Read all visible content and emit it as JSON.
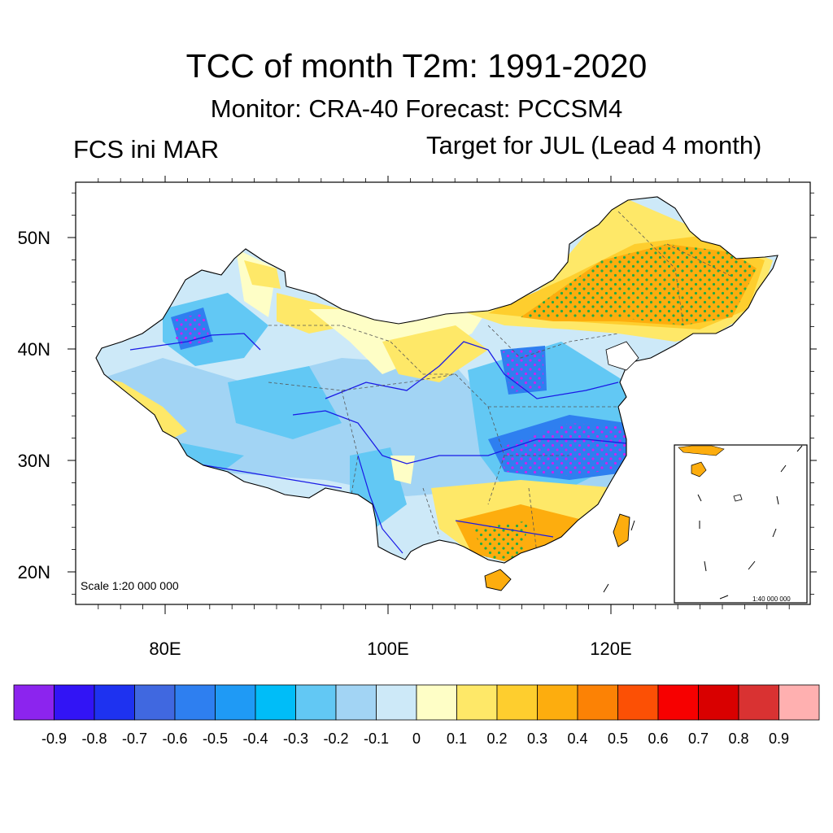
{
  "figure": {
    "title": "TCC of month T2m: 1991-2020",
    "subtitle": "Monitor: CRA-40   Forecast: PCCSM4",
    "left_label": "FCS ini MAR",
    "right_label": "Target for JUL (Lead 4 month)",
    "scale_main": "Scale 1:20 000 000",
    "scale_inset": "1:40 000 000"
  },
  "axes": {
    "lat_ticks": [
      {
        "label": "50N",
        "value": 50
      },
      {
        "label": "40N",
        "value": 40
      },
      {
        "label": "30N",
        "value": 30
      },
      {
        "label": "20N",
        "value": 20
      }
    ],
    "lon_ticks": [
      {
        "label": "80E",
        "value": 80
      },
      {
        "label": "100E",
        "value": 100
      },
      {
        "label": "120E",
        "value": 120
      }
    ],
    "lon_range": [
      72,
      138
    ],
    "lat_range": [
      17,
      55
    ]
  },
  "colorbar": {
    "labels": [
      "-0.9",
      "-0.8",
      "-0.7",
      "-0.6",
      "-0.5",
      "-0.4",
      "-0.3",
      "-0.2",
      "-0.1",
      "0",
      "0.1",
      "0.2",
      "0.3",
      "0.4",
      "0.5",
      "0.6",
      "0.7",
      "0.8",
      "0.9"
    ],
    "colors": [
      "#8c24ee",
      "#3214f5",
      "#1e32f0",
      "#4068e0",
      "#2e7ff0",
      "#1f9af5",
      "#00bdf8",
      "#62c8f4",
      "#a2d4f4",
      "#cde9f8",
      "#fefec6",
      "#fee868",
      "#fece2e",
      "#fdad0e",
      "#fc8205",
      "#fc5005",
      "#f70000",
      "#d90000",
      "#d93232",
      "#ffb0b0"
    ]
  },
  "legend_colors": {
    "land_neutral": "#cde9f8",
    "stipple_green": "#22aa44",
    "stipple_magenta": "#cc22ee",
    "river": "#1a1ae6"
  }
}
